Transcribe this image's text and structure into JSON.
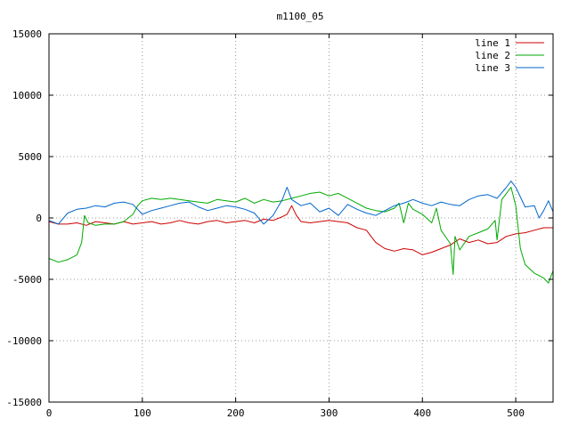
{
  "chart_data": {
    "type": "line",
    "title": "m1100_05",
    "xlabel": "",
    "ylabel": "",
    "xlim": [
      0,
      540
    ],
    "ylim": [
      -15000,
      15000
    ],
    "x_ticks": [
      0,
      100,
      200,
      300,
      400,
      500
    ],
    "y_ticks": [
      -15000,
      -10000,
      -5000,
      0,
      5000,
      10000,
      15000
    ],
    "grid": true,
    "legend_position": "top-right",
    "series": [
      {
        "name": "line 1",
        "color": "#cc0000",
        "points": [
          [
            0,
            -300
          ],
          [
            10,
            -500
          ],
          [
            20,
            -500
          ],
          [
            30,
            -400
          ],
          [
            40,
            -600
          ],
          [
            50,
            -300
          ],
          [
            60,
            -400
          ],
          [
            70,
            -500
          ],
          [
            80,
            -300
          ],
          [
            90,
            -500
          ],
          [
            100,
            -400
          ],
          [
            110,
            -300
          ],
          [
            120,
            -500
          ],
          [
            130,
            -400
          ],
          [
            140,
            -200
          ],
          [
            150,
            -400
          ],
          [
            160,
            -500
          ],
          [
            170,
            -300
          ],
          [
            180,
            -200
          ],
          [
            190,
            -400
          ],
          [
            200,
            -300
          ],
          [
            210,
            -200
          ],
          [
            220,
            -400
          ],
          [
            230,
            -100
          ],
          [
            240,
            -200
          ],
          [
            250,
            100
          ],
          [
            255,
            300
          ],
          [
            260,
            1000
          ],
          [
            265,
            200
          ],
          [
            270,
            -300
          ],
          [
            280,
            -400
          ],
          [
            290,
            -300
          ],
          [
            300,
            -200
          ],
          [
            310,
            -300
          ],
          [
            320,
            -400
          ],
          [
            330,
            -800
          ],
          [
            340,
            -1000
          ],
          [
            345,
            -1500
          ],
          [
            350,
            -2000
          ],
          [
            360,
            -2500
          ],
          [
            370,
            -2700
          ],
          [
            380,
            -2500
          ],
          [
            390,
            -2600
          ],
          [
            400,
            -3000
          ],
          [
            410,
            -2800
          ],
          [
            420,
            -2500
          ],
          [
            430,
            -2200
          ],
          [
            440,
            -1700
          ],
          [
            450,
            -2000
          ],
          [
            460,
            -1800
          ],
          [
            470,
            -2100
          ],
          [
            480,
            -2000
          ],
          [
            490,
            -1500
          ],
          [
            500,
            -1300
          ],
          [
            510,
            -1200
          ],
          [
            520,
            -1000
          ],
          [
            530,
            -800
          ],
          [
            540,
            -800
          ]
        ]
      },
      {
        "name": "line 2",
        "color": "#00aa00",
        "points": [
          [
            0,
            -3300
          ],
          [
            10,
            -3600
          ],
          [
            20,
            -3400
          ],
          [
            30,
            -3000
          ],
          [
            35,
            -2000
          ],
          [
            38,
            200
          ],
          [
            42,
            -400
          ],
          [
            50,
            -600
          ],
          [
            60,
            -500
          ],
          [
            70,
            -500
          ],
          [
            80,
            -300
          ],
          [
            90,
            300
          ],
          [
            95,
            1000
          ],
          [
            100,
            1400
          ],
          [
            110,
            1600
          ],
          [
            120,
            1500
          ],
          [
            130,
            1600
          ],
          [
            140,
            1500
          ],
          [
            150,
            1400
          ],
          [
            160,
            1300
          ],
          [
            170,
            1200
          ],
          [
            180,
            1500
          ],
          [
            190,
            1400
          ],
          [
            200,
            1300
          ],
          [
            210,
            1600
          ],
          [
            220,
            1200
          ],
          [
            230,
            1500
          ],
          [
            240,
            1300
          ],
          [
            250,
            1400
          ],
          [
            260,
            1600
          ],
          [
            270,
            1800
          ],
          [
            280,
            2000
          ],
          [
            290,
            2100
          ],
          [
            300,
            1800
          ],
          [
            310,
            2000
          ],
          [
            320,
            1600
          ],
          [
            330,
            1200
          ],
          [
            340,
            800
          ],
          [
            350,
            600
          ],
          [
            360,
            500
          ],
          [
            370,
            800
          ],
          [
            375,
            1200
          ],
          [
            380,
            -400
          ],
          [
            385,
            1200
          ],
          [
            390,
            700
          ],
          [
            400,
            300
          ],
          [
            410,
            -400
          ],
          [
            415,
            800
          ],
          [
            420,
            -1000
          ],
          [
            430,
            -2100
          ],
          [
            433,
            -4600
          ],
          [
            435,
            -1500
          ],
          [
            440,
            -2600
          ],
          [
            450,
            -1500
          ],
          [
            460,
            -1200
          ],
          [
            470,
            -900
          ],
          [
            478,
            -200
          ],
          [
            480,
            -1800
          ],
          [
            485,
            1500
          ],
          [
            490,
            2000
          ],
          [
            495,
            2500
          ],
          [
            500,
            1000
          ],
          [
            505,
            -2500
          ],
          [
            510,
            -3800
          ],
          [
            520,
            -4500
          ],
          [
            530,
            -4900
          ],
          [
            535,
            -5300
          ],
          [
            540,
            -4300
          ]
        ]
      },
      {
        "name": "line 3",
        "color": "#0066cc",
        "points": [
          [
            0,
            -200
          ],
          [
            10,
            -500
          ],
          [
            20,
            400
          ],
          [
            30,
            700
          ],
          [
            40,
            800
          ],
          [
            50,
            1000
          ],
          [
            60,
            900
          ],
          [
            70,
            1200
          ],
          [
            80,
            1300
          ],
          [
            90,
            1100
          ],
          [
            100,
            300
          ],
          [
            110,
            600
          ],
          [
            120,
            800
          ],
          [
            130,
            1000
          ],
          [
            140,
            1200
          ],
          [
            150,
            1300
          ],
          [
            160,
            900
          ],
          [
            170,
            600
          ],
          [
            180,
            800
          ],
          [
            190,
            1000
          ],
          [
            200,
            900
          ],
          [
            210,
            700
          ],
          [
            220,
            400
          ],
          [
            230,
            -500
          ],
          [
            240,
            200
          ],
          [
            250,
            1500
          ],
          [
            255,
            2500
          ],
          [
            260,
            1500
          ],
          [
            270,
            1000
          ],
          [
            280,
            1200
          ],
          [
            290,
            500
          ],
          [
            300,
            800
          ],
          [
            310,
            200
          ],
          [
            320,
            1100
          ],
          [
            330,
            700
          ],
          [
            340,
            400
          ],
          [
            350,
            200
          ],
          [
            360,
            600
          ],
          [
            370,
            1000
          ],
          [
            380,
            1200
          ],
          [
            390,
            1500
          ],
          [
            400,
            1200
          ],
          [
            410,
            1000
          ],
          [
            420,
            1300
          ],
          [
            430,
            1100
          ],
          [
            440,
            1000
          ],
          [
            450,
            1500
          ],
          [
            460,
            1800
          ],
          [
            470,
            1900
          ],
          [
            480,
            1600
          ],
          [
            490,
            2500
          ],
          [
            495,
            3000
          ],
          [
            500,
            2500
          ],
          [
            510,
            900
          ],
          [
            520,
            1000
          ],
          [
            525,
            0
          ],
          [
            530,
            600
          ],
          [
            535,
            1400
          ],
          [
            540,
            500
          ]
        ]
      }
    ]
  }
}
